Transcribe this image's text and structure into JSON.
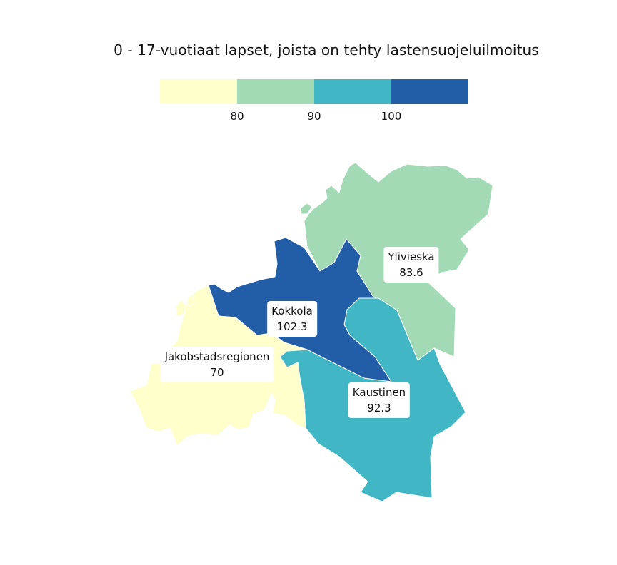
{
  "title": "0 - 17-vuotiaat lapset, joista on tehty lastensuojeluilmoitus",
  "legend": {
    "colors": [
      "#ffffcc",
      "#a1dab4",
      "#41b6c4",
      "#225ea8"
    ],
    "ticks": [
      "80",
      "90",
      "100"
    ]
  },
  "regions": [
    {
      "name": "Ylivieska",
      "value": "83.6",
      "color": "#a1dab4"
    },
    {
      "name": "Kokkola",
      "value": "102.3",
      "color": "#225ea8"
    },
    {
      "name": "Jakobstadsregionen",
      "value": "70",
      "color": "#ffffcc"
    },
    {
      "name": "Kaustinen",
      "value": "92.3",
      "color": "#41b6c4"
    }
  ]
}
